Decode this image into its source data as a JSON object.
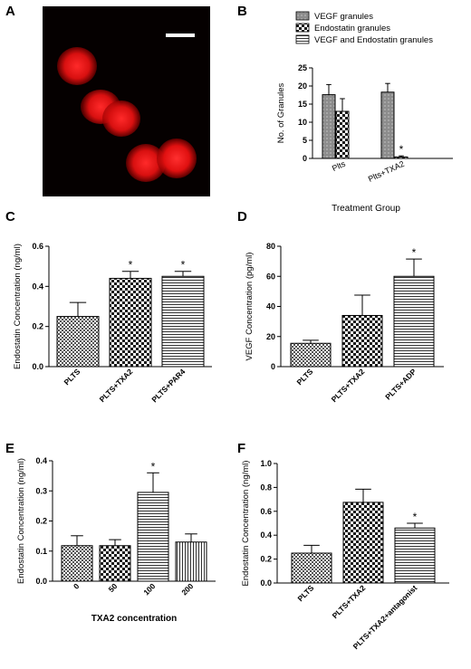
{
  "panels": {
    "A": "A",
    "B": "B",
    "C": "C",
    "D": "D",
    "E": "E",
    "F": "F"
  },
  "micrograph": {
    "scale_bar_color": "#ffffff",
    "cell_color": "#e01010",
    "background": "#050000"
  },
  "chart_data": [
    {
      "id": "B",
      "type": "bar",
      "title": "",
      "xlabel": "Treatment Group",
      "ylabel": "No. of Granules",
      "ylim": [
        0,
        25
      ],
      "yticks": [
        "0",
        "5",
        "10",
        "15",
        "20",
        "25"
      ],
      "categories": [
        "Plts",
        "Plts+TXA2"
      ],
      "legend_position": "top",
      "series": [
        {
          "name": "VEGF granules",
          "pattern": "gray",
          "values": [
            17.6,
            18.3
          ],
          "errors": [
            2.8,
            2.4
          ],
          "sig": [
            "",
            ""
          ]
        },
        {
          "name": "Endostatin granules",
          "pattern": "checker",
          "values": [
            13.0,
            0.4
          ],
          "errors": [
            3.5,
            0.3
          ],
          "sig": [
            "",
            "*"
          ]
        },
        {
          "name": "VEGF and Endostatin granules",
          "pattern": "hlines",
          "values": [
            0,
            0
          ],
          "errors": [
            0,
            0
          ],
          "sig": [
            "",
            ""
          ]
        }
      ]
    },
    {
      "id": "C",
      "type": "bar",
      "title": "",
      "xlabel": "",
      "ylabel": "Endostatin Concentration (ng/ml)",
      "ylim": [
        0,
        0.6
      ],
      "yticks": [
        "0.0",
        "0.2",
        "0.4",
        "0.6"
      ],
      "categories": [
        "PLTS",
        "PLTS+TXA2",
        "PLTS+PAR4"
      ],
      "values": [
        0.25,
        0.44,
        0.45
      ],
      "errors": [
        0.07,
        0.035,
        0.025
      ],
      "patterns": [
        "smallchecker",
        "checker",
        "hlines"
      ],
      "sig": [
        "",
        "*",
        "*"
      ]
    },
    {
      "id": "D",
      "type": "bar",
      "title": "",
      "xlabel": "",
      "ylabel": "VEGF Concentration (pg/ml)",
      "ylim": [
        0,
        80
      ],
      "yticks": [
        "0",
        "20",
        "40",
        "60",
        "80"
      ],
      "categories": [
        "PLTS",
        "PLTS+TXA2",
        "PLTS+ADP"
      ],
      "values": [
        15.5,
        34,
        60
      ],
      "errors": [
        2,
        13.5,
        11.5
      ],
      "patterns": [
        "smallchecker",
        "checker",
        "hlines"
      ],
      "sig": [
        "",
        "",
        "*"
      ]
    },
    {
      "id": "E",
      "type": "bar",
      "title": "",
      "xlabel": "TXA2 concentration",
      "ylabel": "Endostatin Concentration (ng/ml)",
      "ylim": [
        0,
        0.4
      ],
      "yticks": [
        "0.0",
        "0.1",
        "0.2",
        "0.3",
        "0.4"
      ],
      "categories": [
        "0",
        "50",
        "100",
        "200"
      ],
      "values": [
        0.118,
        0.118,
        0.295,
        0.13
      ],
      "errors": [
        0.033,
        0.02,
        0.065,
        0.027
      ],
      "patterns": [
        "smallchecker",
        "checker",
        "hlines",
        "vlines"
      ],
      "sig": [
        "",
        "",
        "*",
        ""
      ]
    },
    {
      "id": "F",
      "type": "bar",
      "title": "",
      "xlabel": "",
      "ylabel": "Endostatin Concentration (ng/ml)",
      "ylim": [
        0,
        1.0
      ],
      "yticks": [
        "0.0",
        "0.2",
        "0.4",
        "0.6",
        "0.8",
        "1.0"
      ],
      "categories": [
        "PLTS",
        "PLTS+TXA2",
        "PLTS+TXA2+antagonist"
      ],
      "values": [
        0.25,
        0.675,
        0.46
      ],
      "errors": [
        0.065,
        0.11,
        0.04
      ],
      "patterns": [
        "smallchecker",
        "checker",
        "hlines"
      ],
      "sig": [
        "",
        "",
        "*"
      ]
    }
  ]
}
